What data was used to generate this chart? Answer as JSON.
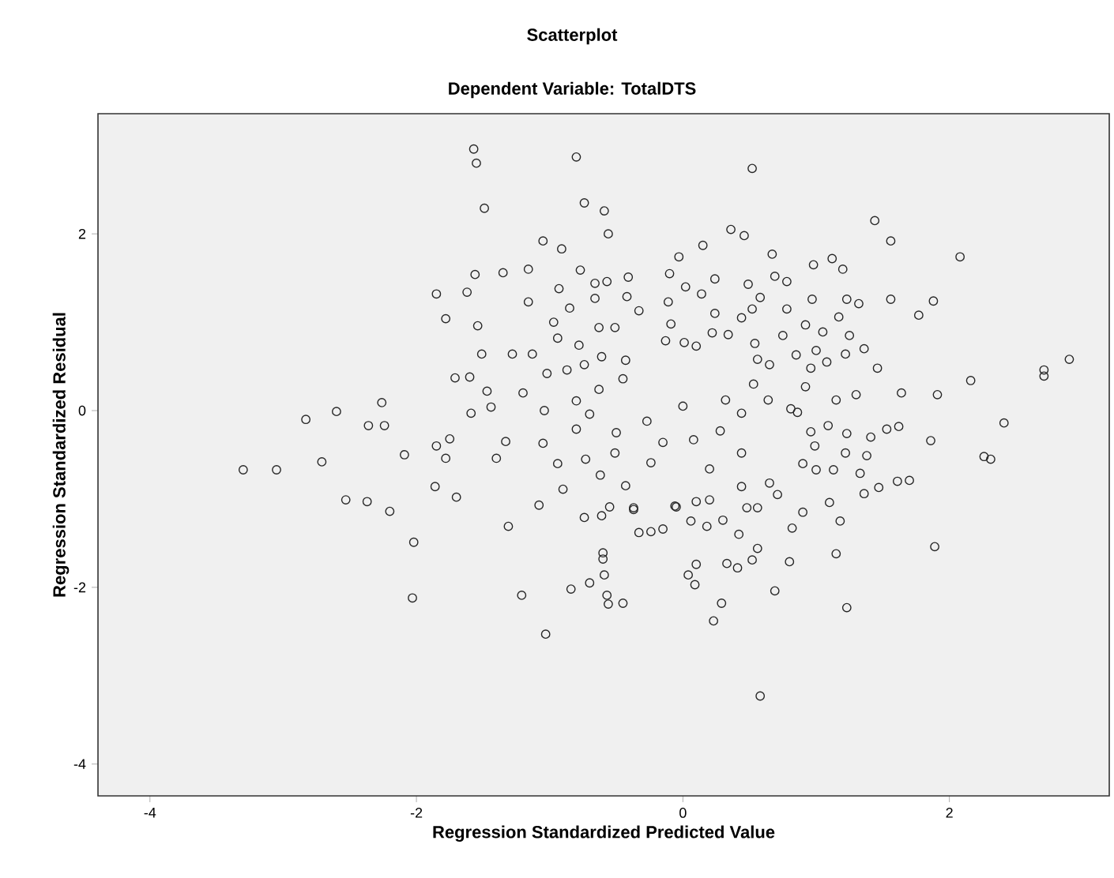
{
  "chart_data": {
    "type": "scatter",
    "title": "Scatterplot",
    "subtitle": "Dependent Variable: TotalDTS",
    "xlabel": "Regression Standardized Predicted Value",
    "ylabel": "Regression Standardized Residual",
    "color": "#262626",
    "marker": "circle",
    "xlim": [
      -4.39,
      3.2
    ],
    "ylim": [
      -4.36,
      3.36
    ],
    "xticks": [
      -4,
      -2,
      0,
      2
    ],
    "yticks": [
      -4,
      -2,
      0,
      2
    ],
    "x": [
      -1.57,
      -1.55,
      -0.8,
      -1.49,
      -0.74,
      -0.59,
      -0.56,
      -1.05,
      -0.91,
      -1.56,
      -1.35,
      -1.16,
      -0.77,
      -1.85,
      -1.62,
      -1.78,
      -1.54,
      -0.93,
      -0.41,
      -1.51,
      -1.28,
      -1.71,
      -1.6,
      -1.47,
      -1.2,
      -1.59,
      -1.44,
      -2.26,
      -2.83,
      -2.6,
      -2.36,
      -2.24,
      -3.3,
      -3.05,
      -2.71,
      -2.09,
      -2.53,
      -2.37,
      -2.2,
      -1.85,
      -1.75,
      -1.78,
      -1.86,
      -1.7,
      -1.33,
      -1.4,
      -1.05,
      -1.31,
      -1.08,
      -0.9,
      -0.74,
      -0.61,
      -0.94,
      -0.73,
      -0.62,
      -0.5,
      -0.51,
      -1.02,
      -0.87,
      -1.04,
      -0.8,
      -0.7,
      -0.8,
      -1.13,
      -0.97,
      -0.85,
      -1.16,
      -0.63,
      -0.51,
      -0.66,
      -0.57,
      -0.66,
      -0.94,
      -0.78,
      -0.61,
      -0.43,
      -0.74,
      -0.63,
      -0.45,
      -0.33,
      -0.42,
      0.52,
      0.36,
      0.46,
      1.44,
      1.56,
      2.08,
      -0.03,
      0.15,
      0.67,
      0.98,
      1.12,
      1.2,
      -0.1,
      0.24,
      0.02,
      0.14,
      0.49,
      0.69,
      0.78,
      0.58,
      0.97,
      1.23,
      1.32,
      1.56,
      1.88,
      1.77,
      -0.11,
      0.24,
      0.52,
      0.78,
      -0.09,
      0.44,
      0.92,
      1.17,
      1.05,
      1.25,
      0.75,
      -0.13,
      0.22,
      0.34,
      0.54,
      0.01,
      0.1,
      1.36,
      1.22,
      0.85,
      1.0,
      1.08,
      0.56,
      0.65,
      1.46,
      0.96,
      2.9,
      2.71,
      2.71,
      2.16,
      1.91,
      1.64,
      1.3,
      0.92,
      1.15,
      2.41,
      1.41,
      1.62,
      1.53,
      1.86,
      2.26,
      2.31,
      0.81,
      0.86,
      1.09,
      1.23,
      0.96,
      0.99,
      1.22,
      1.38,
      1.33,
      1.13,
      0.9,
      1.0,
      1.61,
      1.7,
      1.47,
      1.36,
      1.1,
      1.18,
      0.9,
      0.82,
      0.44,
      0.65,
      0.56,
      0.2,
      -0.06,
      0.53,
      0.64,
      0.32,
      0.08,
      -0.24,
      0.28,
      0.44,
      0.0,
      -0.27,
      -0.15,
      0.2,
      0.44,
      1.89,
      1.23,
      0.69,
      0.58,
      0.23,
      0.29,
      0.04,
      0.09,
      0.1,
      0.33,
      0.41,
      0.52,
      0.56,
      0.8,
      1.15,
      -0.33,
      -0.24,
      -0.15,
      0.06,
      0.18,
      0.3,
      0.42,
      -0.05,
      0.1,
      0.48,
      0.71,
      -0.37,
      -2.02,
      -2.03,
      -1.21,
      -1.03,
      -0.84,
      -0.7,
      -0.6,
      -0.6,
      -0.59,
      -0.57,
      -0.56,
      -0.45,
      -0.43,
      -0.37,
      -0.55
    ],
    "values": [
      2.96,
      2.8,
      2.87,
      2.29,
      2.35,
      2.26,
      2.0,
      1.92,
      1.83,
      1.54,
      1.56,
      1.6,
      1.59,
      1.32,
      1.34,
      1.04,
      0.96,
      1.38,
      1.51,
      0.64,
      0.64,
      0.37,
      0.38,
      0.22,
      0.2,
      -0.03,
      0.04,
      0.09,
      -0.1,
      -0.01,
      -0.17,
      -0.17,
      -0.67,
      -0.67,
      -0.58,
      -0.5,
      -1.01,
      -1.03,
      -1.14,
      -0.4,
      -0.32,
      -0.54,
      -0.86,
      -0.98,
      -0.35,
      -0.54,
      -0.37,
      -1.31,
      -1.07,
      -0.89,
      -1.21,
      -1.19,
      -0.6,
      -0.55,
      -0.73,
      -0.25,
      -0.48,
      0.42,
      0.46,
      0.0,
      0.11,
      -0.04,
      -0.21,
      0.64,
      1.0,
      1.16,
      1.23,
      0.94,
      0.94,
      1.44,
      1.46,
      1.27,
      0.82,
      0.74,
      0.61,
      0.57,
      0.52,
      0.24,
      0.36,
      1.13,
      1.29,
      2.74,
      2.05,
      1.98,
      2.15,
      1.92,
      1.74,
      1.74,
      1.87,
      1.77,
      1.65,
      1.72,
      1.6,
      1.55,
      1.49,
      1.4,
      1.32,
      1.43,
      1.52,
      1.46,
      1.28,
      1.26,
      1.26,
      1.21,
      1.26,
      1.24,
      1.08,
      1.23,
      1.1,
      1.15,
      1.15,
      0.98,
      1.05,
      0.97,
      1.06,
      0.89,
      0.85,
      0.85,
      0.79,
      0.88,
      0.86,
      0.76,
      0.77,
      0.73,
      0.7,
      0.64,
      0.63,
      0.68,
      0.55,
      0.58,
      0.52,
      0.48,
      0.48,
      0.58,
      0.46,
      0.39,
      0.34,
      0.18,
      0.2,
      0.18,
      0.27,
      0.12,
      -0.14,
      -0.3,
      -0.18,
      -0.21,
      -0.34,
      -0.52,
      -0.55,
      0.02,
      -0.02,
      -0.17,
      -0.26,
      -0.24,
      -0.4,
      -0.48,
      -0.51,
      -0.71,
      -0.67,
      -0.6,
      -0.67,
      -0.8,
      -0.79,
      -0.87,
      -0.94,
      -1.04,
      -1.25,
      -1.15,
      -1.33,
      -0.86,
      -0.82,
      -1.1,
      -1.01,
      -1.08,
      0.3,
      0.12,
      0.12,
      -0.33,
      -0.59,
      -0.23,
      -0.03,
      0.05,
      -0.12,
      -0.36,
      -0.66,
      -0.48,
      -1.54,
      -2.23,
      -2.04,
      -3.23,
      -2.38,
      -2.18,
      -1.86,
      -1.97,
      -1.74,
      -1.73,
      -1.78,
      -1.69,
      -1.56,
      -1.71,
      -1.62,
      -1.38,
      -1.37,
      -1.34,
      -1.25,
      -1.31,
      -1.24,
      -1.4,
      -1.09,
      -1.03,
      -1.1,
      -0.95,
      -1.1,
      -1.49,
      -2.12,
      -2.09,
      -2.53,
      -2.02,
      -1.95,
      -1.61,
      -1.68,
      -1.86,
      -2.09,
      -2.19,
      -2.18,
      -0.85,
      -1.12,
      -1.09
    ]
  }
}
